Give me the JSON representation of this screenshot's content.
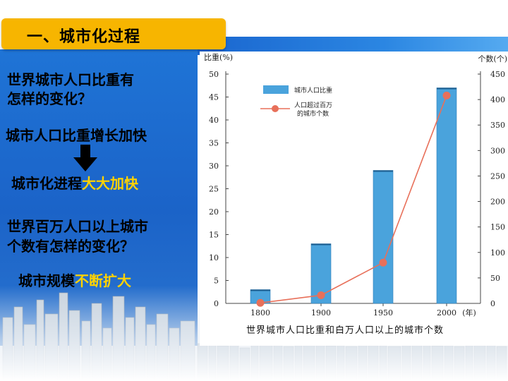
{
  "header": {
    "title": "一、城市化过程"
  },
  "left": {
    "question1_line1": "世界城市人口比重有",
    "question1_line2": "怎样的变化？",
    "answer1": "城市人口比重增长加快",
    "answer2_prefix": "城市化进程",
    "answer2_highlight": "大大加快",
    "question2_line1": "世界百万人口以上城市",
    "question2_line2": "个数有怎样的变化？",
    "answer3_prefix": "城市规模",
    "answer3_highlight": "不断扩大"
  },
  "colors": {
    "title_bg": "#f7b500",
    "panel_blue": "#1f74d6",
    "highlight": "#ffd200",
    "bar": "#4aa3dc",
    "line": "#e8705a"
  },
  "chart_data": {
    "type": "bar+line",
    "caption": "世界城市人口比重和白万人口以上的城市个数",
    "xunit": "(年)",
    "categories": [
      "1800",
      "1900",
      "1950",
      "2000"
    ],
    "y_left": {
      "label": "比重(%)",
      "range": [
        0,
        50
      ],
      "ticks": [
        "0",
        "5",
        "10",
        "15",
        "20",
        "25",
        "30",
        "35",
        "40",
        "45",
        "50"
      ]
    },
    "y_right": {
      "label": "个数(个)",
      "range": [
        0,
        450
      ],
      "ticks": [
        "0",
        "50",
        "100",
        "150",
        "200",
        "250",
        "300",
        "350",
        "400",
        "450"
      ]
    },
    "series": [
      {
        "name": "城市人口比重",
        "type": "bar",
        "axis": "left",
        "values": [
          3,
          13,
          29,
          47
        ]
      },
      {
        "name_line1": "人口超过百万",
        "name_line2": "的城市个数",
        "type": "line",
        "axis": "right",
        "values": [
          1,
          16,
          80,
          408
        ]
      }
    ],
    "legend_position": "top-left"
  }
}
